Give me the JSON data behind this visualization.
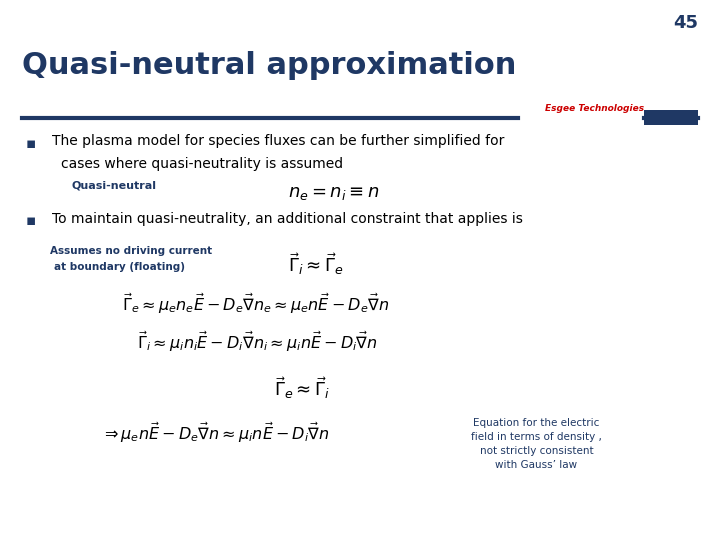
{
  "slide_number": "45",
  "title": "Quasi-neutral approximation",
  "title_color": "#1F3864",
  "title_fontsize": 22,
  "background_color": "#FFFFFF",
  "bar_color": "#1F3864",
  "logo_text": "Esgee Technologies",
  "logo_color_main": "#CC0000",
  "bullet_color": "#1F3864",
  "label1": "Quasi-neutral",
  "eq1": "$n_e = n_i \\equiv n$",
  "bullet2_text": "To maintain quasi-neutrality, an additional constraint that applies is",
  "label2_line1": "Assumes no driving current",
  "label2_line2": "at boundary (floating)",
  "eq2": "$\\vec{\\Gamma}_i \\approx \\vec{\\Gamma}_e$",
  "eq3": "$\\vec{\\Gamma}_e \\approx \\mu_e n_e \\vec{E} - D_e \\vec{\\nabla} n_e \\approx \\mu_e n\\vec{E} - D_e \\vec{\\nabla} n$",
  "eq4": "$\\vec{\\Gamma}_i \\approx \\mu_i n_i \\vec{E} - D_i \\vec{\\nabla} n_i \\approx \\mu_i n\\vec{E} - D_i \\vec{\\nabla} n$",
  "eq5": "$\\vec{\\Gamma}_e \\approx \\vec{\\Gamma}_i$",
  "eq6": "$\\Rightarrow \\mu_e n\\vec{E} - D_e \\vec{\\nabla} n \\approx \\mu_i n\\vec{E} - D_i \\vec{\\nabla} n$",
  "note_text": "Equation for the electric\nfield in terms of density ,\nnot strictly consistent\nwith Gauss’ law",
  "note_color": "#1F3864",
  "eq_color": "#000000",
  "text_color": "#000000",
  "label_color": "#1F3864"
}
